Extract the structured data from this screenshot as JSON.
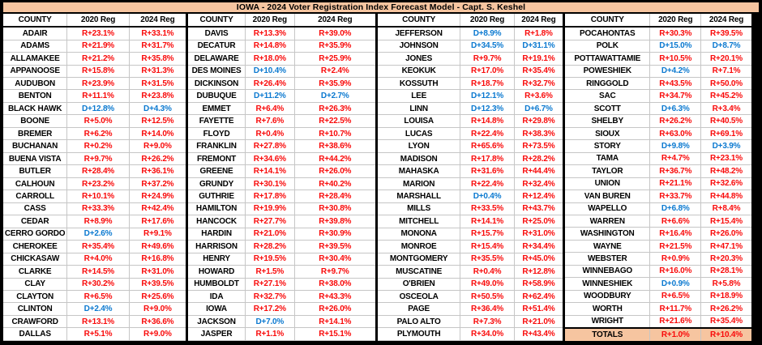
{
  "colors": {
    "accent_peach": "#f6c5a0",
    "rep_red": "#f90a0a",
    "dem_blue": "#0b79d0",
    "grid_gray": "#c6c6c6",
    "frame_black": "#000000"
  },
  "chart_data": {
    "type": "table",
    "title": "IOWA - 2024 Voter Registration Index Forecast Model - Capt. S. Keshel",
    "columns": [
      "COUNTY",
      "2020 Reg",
      "2024 Reg"
    ],
    "groups": [
      {
        "rows": [
          [
            "ADAIR",
            "R+23.1%",
            "R+33.1%"
          ],
          [
            "ADAMS",
            "R+21.9%",
            "R+31.7%"
          ],
          [
            "ALLAMAKEE",
            "R+21.2%",
            "R+35.8%"
          ],
          [
            "APPANOOSE",
            "R+15.8%",
            "R+31.3%"
          ],
          [
            "AUDUBON",
            "R+23.9%",
            "R+31.5%"
          ],
          [
            "BENTON",
            "R+11.1%",
            "R+23.8%"
          ],
          [
            "BLACK HAWK",
            "D+12.8%",
            "D+4.3%"
          ],
          [
            "BOONE",
            "R+5.0%",
            "R+12.5%"
          ],
          [
            "BREMER",
            "R+6.2%",
            "R+14.0%"
          ],
          [
            "BUCHANAN",
            "R+0.2%",
            "R+9.0%"
          ],
          [
            "BUENA VISTA",
            "R+9.7%",
            "R+26.2%"
          ],
          [
            "BUTLER",
            "R+28.4%",
            "R+36.1%"
          ],
          [
            "CALHOUN",
            "R+23.2%",
            "R+37.2%"
          ],
          [
            "CARROLL",
            "R+10.1%",
            "R+24.9%"
          ],
          [
            "CASS",
            "R+33.3%",
            "R+42.4%"
          ],
          [
            "CEDAR",
            "R+8.9%",
            "R+17.6%"
          ],
          [
            "CERRO GORDO",
            "D+2.6%",
            "R+9.1%"
          ],
          [
            "CHEROKEE",
            "R+35.4%",
            "R+49.6%"
          ],
          [
            "CHICKASAW",
            "R+4.0%",
            "R+16.8%"
          ],
          [
            "CLARKE",
            "R+14.5%",
            "R+31.0%"
          ],
          [
            "CLAY",
            "R+30.2%",
            "R+39.5%"
          ],
          [
            "CLAYTON",
            "R+6.5%",
            "R+25.6%"
          ],
          [
            "CLINTON",
            "D+2.4%",
            "R+9.0%"
          ],
          [
            "CRAWFORD",
            "R+13.1%",
            "R+36.6%"
          ],
          [
            "DALLAS",
            "R+5.1%",
            "R+9.0%"
          ]
        ]
      },
      {
        "rows": [
          [
            "DAVIS",
            "R+13.3%",
            "R+39.0%"
          ],
          [
            "DECATUR",
            "R+14.8%",
            "R+35.9%"
          ],
          [
            "DELAWARE",
            "R+18.0%",
            "R+25.9%"
          ],
          [
            "DES MOINES",
            "D+10.4%",
            "R+2.4%"
          ],
          [
            "DICKINSON",
            "R+26.4%",
            "R+35.9%"
          ],
          [
            "DUBUQUE",
            "D+11.2%",
            "D+2.7%"
          ],
          [
            "EMMET",
            "R+6.4%",
            "R+26.3%"
          ],
          [
            "FAYETTE",
            "R+7.6%",
            "R+22.5%"
          ],
          [
            "FLOYD",
            "R+0.4%",
            "R+10.7%"
          ],
          [
            "FRANKLIN",
            "R+27.8%",
            "R+38.6%"
          ],
          [
            "FREMONT",
            "R+34.6%",
            "R+44.2%"
          ],
          [
            "GREENE",
            "R+14.1%",
            "R+26.0%"
          ],
          [
            "GRUNDY",
            "R+30.1%",
            "R+40.2%"
          ],
          [
            "GUTHRIE",
            "R+17.8%",
            "R+28.4%"
          ],
          [
            "HAMILTON",
            "R+19.9%",
            "R+30.8%"
          ],
          [
            "HANCOCK",
            "R+27.7%",
            "R+39.8%"
          ],
          [
            "HARDIN",
            "R+21.0%",
            "R+30.9%"
          ],
          [
            "HARRISON",
            "R+28.2%",
            "R+39.5%"
          ],
          [
            "HENRY",
            "R+19.5%",
            "R+30.4%"
          ],
          [
            "HOWARD",
            "R+1.5%",
            "R+9.7%"
          ],
          [
            "HUMBOLDT",
            "R+27.1%",
            "R+38.0%"
          ],
          [
            "IDA",
            "R+32.7%",
            "R+43.3%"
          ],
          [
            "IOWA",
            "R+17.2%",
            "R+26.0%"
          ],
          [
            "JACKSON",
            "D+7.0%",
            "R+14.1%"
          ],
          [
            "JASPER",
            "R+1.1%",
            "R+15.1%"
          ]
        ]
      },
      {
        "rows": [
          [
            "JEFFERSON",
            "D+8.9%",
            "R+1.8%"
          ],
          [
            "JOHNSON",
            "D+34.5%",
            "D+31.1%"
          ],
          [
            "JONES",
            "R+9.7%",
            "R+19.1%"
          ],
          [
            "KEOKUK",
            "R+17.0%",
            "R+35.4%"
          ],
          [
            "KOSSUTH",
            "R+18.7%",
            "R+32.7%"
          ],
          [
            "LEE",
            "D+12.1%",
            "R+3.6%"
          ],
          [
            "LINN",
            "D+12.3%",
            "D+6.7%"
          ],
          [
            "LOUISA",
            "R+14.8%",
            "R+29.8%"
          ],
          [
            "LUCAS",
            "R+22.4%",
            "R+38.3%"
          ],
          [
            "LYON",
            "R+65.6%",
            "R+73.5%"
          ],
          [
            "MADISON",
            "R+17.8%",
            "R+28.2%"
          ],
          [
            "MAHASKA",
            "R+31.6%",
            "R+44.4%"
          ],
          [
            "MARION",
            "R+22.4%",
            "R+32.4%"
          ],
          [
            "MARSHALL",
            "D+0.4%",
            "R+12.4%"
          ],
          [
            "MILLS",
            "R+33.5%",
            "R+43.7%"
          ],
          [
            "MITCHELL",
            "R+14.1%",
            "R+25.0%"
          ],
          [
            "MONONA",
            "R+15.7%",
            "R+31.0%"
          ],
          [
            "MONROE",
            "R+15.4%",
            "R+34.4%"
          ],
          [
            "MONTGOMERY",
            "R+35.5%",
            "R+45.0%"
          ],
          [
            "MUSCATINE",
            "R+0.4%",
            "R+12.8%"
          ],
          [
            "O'BRIEN",
            "R+49.0%",
            "R+58.9%"
          ],
          [
            "OSCEOLA",
            "R+50.5%",
            "R+62.4%"
          ],
          [
            "PAGE",
            "R+36.4%",
            "R+51.4%"
          ],
          [
            "PALO ALTO",
            "R+7.3%",
            "R+21.0%"
          ],
          [
            "PLYMOUTH",
            "R+34.0%",
            "R+43.4%"
          ]
        ]
      },
      {
        "rows": [
          [
            "POCAHONTAS",
            "R+30.3%",
            "R+39.5%"
          ],
          [
            "POLK",
            "D+15.0%",
            "D+8.7%"
          ],
          [
            "POTTAWATTAMIE",
            "R+10.5%",
            "R+20.1%"
          ],
          [
            "POWESHIEK",
            "D+4.2%",
            "R+7.1%"
          ],
          [
            "RINGGOLD",
            "R+43.5%",
            "R+50.0%"
          ],
          [
            "SAC",
            "R+34.7%",
            "R+45.2%"
          ],
          [
            "SCOTT",
            "D+6.3%",
            "R+3.4%"
          ],
          [
            "SHELBY",
            "R+26.2%",
            "R+40.5%"
          ],
          [
            "SIOUX",
            "R+63.0%",
            "R+69.1%"
          ],
          [
            "STORY",
            "D+9.8%",
            "D+3.9%"
          ],
          [
            "TAMA",
            "R+4.7%",
            "R+23.1%"
          ],
          [
            "TAYLOR",
            "R+36.7%",
            "R+48.2%"
          ],
          [
            "UNION",
            "R+21.1%",
            "R+32.6%"
          ],
          [
            "VAN BUREN",
            "R+33.7%",
            "R+44.8%"
          ],
          [
            "WAPELLO",
            "D+6.8%",
            "R+8.4%"
          ],
          [
            "WARREN",
            "R+6.6%",
            "R+15.4%"
          ],
          [
            "WASHINGTON",
            "R+16.4%",
            "R+26.0%"
          ],
          [
            "WAYNE",
            "R+21.5%",
            "R+47.1%"
          ],
          [
            "WEBSTER",
            "R+0.9%",
            "R+20.3%"
          ],
          [
            "WINNEBAGO",
            "R+16.0%",
            "R+28.1%"
          ],
          [
            "WINNESHIEK",
            "D+0.9%",
            "R+5.8%"
          ],
          [
            "WOODBURY",
            "R+6.5%",
            "R+18.9%"
          ],
          [
            "WORTH",
            "R+11.7%",
            "R+26.2%"
          ],
          [
            "WRIGHT",
            "R+21.6%",
            "R+35.4%"
          ]
        ]
      }
    ],
    "totals_row": [
      "TOTALS",
      "R+1.0%",
      "R+10.4%"
    ]
  }
}
